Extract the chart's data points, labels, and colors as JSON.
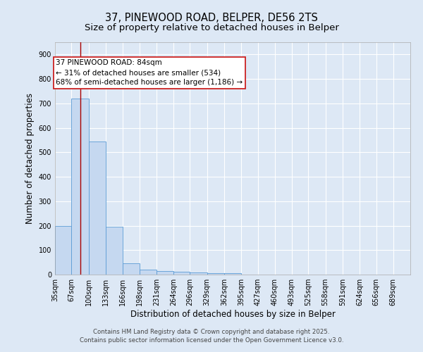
{
  "title": "37, PINEWOOD ROAD, BELPER, DE56 2TS",
  "subtitle": "Size of property relative to detached houses in Belper",
  "xlabel": "Distribution of detached houses by size in Belper",
  "ylabel": "Number of detached properties",
  "bin_labels": [
    "35sqm",
    "67sqm",
    "100sqm",
    "133sqm",
    "166sqm",
    "198sqm",
    "231sqm",
    "264sqm",
    "296sqm",
    "329sqm",
    "362sqm",
    "395sqm",
    "427sqm",
    "460sqm",
    "493sqm",
    "525sqm",
    "558sqm",
    "591sqm",
    "624sqm",
    "656sqm",
    "689sqm"
  ],
  "bar_values": [
    200,
    720,
    545,
    195,
    47,
    20,
    13,
    12,
    8,
    7,
    7,
    0,
    0,
    0,
    0,
    0,
    0,
    0,
    0,
    0,
    0
  ],
  "bin_edges": [
    35,
    67,
    100,
    133,
    166,
    198,
    231,
    264,
    296,
    329,
    362,
    395,
    427,
    460,
    493,
    525,
    558,
    591,
    624,
    656,
    689,
    722
  ],
  "bar_color": "#c5d8f0",
  "bar_edge_color": "#5b9bd5",
  "property_line_x": 84,
  "property_line_color": "#aa0000",
  "annotation_line1": "37 PINEWOOD ROAD: 84sqm",
  "annotation_line2": "← 31% of detached houses are smaller (534)",
  "annotation_line3": "68% of semi-detached houses are larger (1,186) →",
  "annotation_box_color": "#ffffff",
  "annotation_box_edge_color": "#cc2222",
  "ylim": [
    0,
    950
  ],
  "yticks": [
    0,
    100,
    200,
    300,
    400,
    500,
    600,
    700,
    800,
    900
  ],
  "background_color": "#dde8f5",
  "plot_bg_color": "#dde8f5",
  "footer_line1": "Contains HM Land Registry data © Crown copyright and database right 2025.",
  "footer_line2": "Contains public sector information licensed under the Open Government Licence v3.0.",
  "title_fontsize": 10.5,
  "subtitle_fontsize": 9.5,
  "axis_label_fontsize": 8.5,
  "tick_fontsize": 7,
  "annotation_fontsize": 7.5,
  "footer_fontsize": 6.2
}
